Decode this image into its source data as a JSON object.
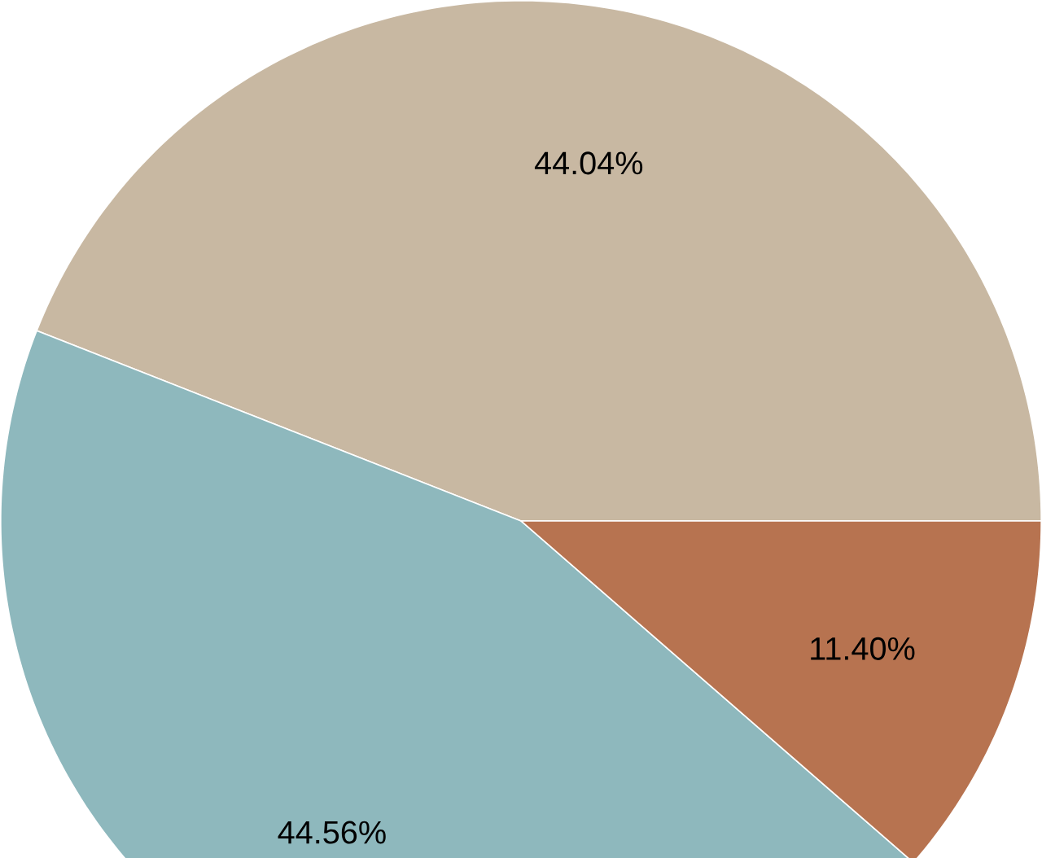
{
  "chart_data": {
    "type": "pie",
    "categories": [
      null,
      null,
      null
    ],
    "values": [
      44.04,
      44.56,
      11.4
    ],
    "colors": [
      "#c8b8a2",
      "#8eb8bd",
      "#b77350"
    ],
    "value_labels": [
      "44.04%",
      "44.56%",
      "11.40%"
    ]
  }
}
